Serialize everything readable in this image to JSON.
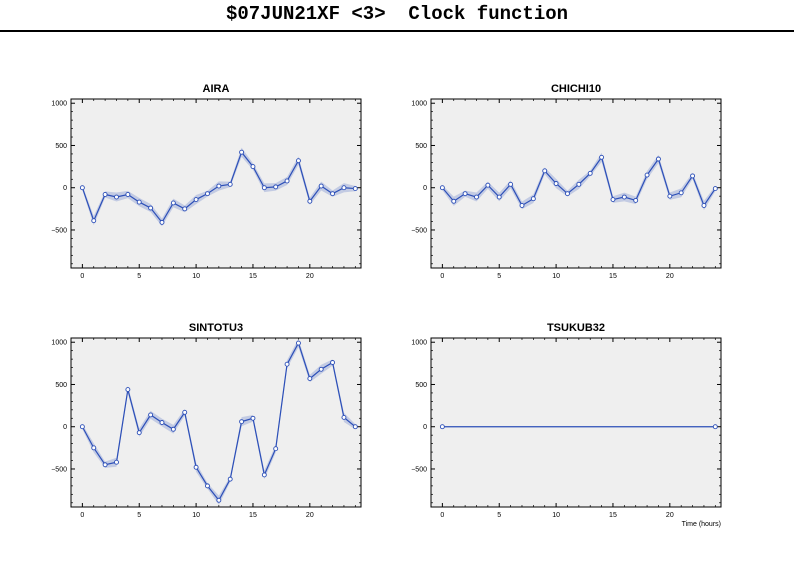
{
  "title": "$07JUN21XF <3>  Clock function",
  "colors": {
    "plot_bg": "#efefef",
    "series": "#2c4fb8",
    "band": "#b8c2e0",
    "axis": "#000000"
  },
  "chart_data": [
    {
      "type": "line",
      "title": "AIRA",
      "xlabel": "",
      "ylabel": "",
      "xlim": [
        -1,
        24.5
      ],
      "ylim": [
        -950,
        1050
      ],
      "xticks": [
        0,
        5,
        10,
        15,
        20
      ],
      "yticks": [
        -500,
        0,
        500,
        1000
      ],
      "grid": false,
      "x": [
        0,
        1,
        2,
        3,
        4,
        5,
        6,
        7,
        8,
        9,
        10,
        11,
        12,
        13,
        14,
        15,
        16,
        17,
        18,
        19,
        20,
        21,
        22,
        23,
        24
      ],
      "series": [
        {
          "values": [
            0,
            -390,
            -80,
            -110,
            -80,
            -170,
            -240,
            -410,
            -180,
            -250,
            -140,
            -70,
            20,
            40,
            420,
            250,
            0,
            10,
            80,
            320,
            -160,
            20,
            -70,
            0,
            -10
          ]
        }
      ]
    },
    {
      "type": "line",
      "title": "CHICHI10",
      "xlabel": "",
      "ylabel": "",
      "xlim": [
        -1,
        24.5
      ],
      "ylim": [
        -950,
        1050
      ],
      "xticks": [
        0,
        5,
        10,
        15,
        20
      ],
      "yticks": [
        -500,
        0,
        500,
        1000
      ],
      "grid": false,
      "x": [
        0,
        1,
        2,
        3,
        4,
        5,
        6,
        7,
        8,
        9,
        10,
        11,
        12,
        13,
        14,
        15,
        16,
        17,
        18,
        19,
        20,
        21,
        22,
        23,
        24
      ],
      "series": [
        {
          "values": [
            0,
            -160,
            -70,
            -110,
            30,
            -110,
            40,
            -210,
            -130,
            200,
            50,
            -70,
            40,
            170,
            360,
            -140,
            -110,
            -150,
            150,
            340,
            -100,
            -60,
            140,
            -210,
            -10
          ]
        }
      ]
    },
    {
      "type": "line",
      "title": "SINTOTU3",
      "xlabel": "",
      "ylabel": "",
      "xlim": [
        -1,
        24.5
      ],
      "ylim": [
        -950,
        1050
      ],
      "xticks": [
        0,
        5,
        10,
        15,
        20
      ],
      "yticks": [
        -500,
        0,
        500,
        1000
      ],
      "grid": false,
      "x": [
        0,
        1,
        2,
        3,
        4,
        5,
        6,
        7,
        8,
        9,
        10,
        11,
        12,
        13,
        14,
        15,
        16,
        17,
        18,
        19,
        20,
        21,
        22,
        23,
        24
      ],
      "series": [
        {
          "values": [
            0,
            -250,
            -450,
            -420,
            440,
            -70,
            140,
            50,
            -30,
            170,
            -480,
            -700,
            -870,
            -620,
            60,
            100,
            -570,
            -260,
            740,
            990,
            570,
            680,
            760,
            110,
            0
          ]
        }
      ]
    },
    {
      "type": "line",
      "title": "TSUKUB32",
      "xlabel": "Time (hours)",
      "ylabel": "",
      "xlim": [
        -1,
        24.5
      ],
      "ylim": [
        -950,
        1050
      ],
      "xticks": [
        0,
        5,
        10,
        15,
        20
      ],
      "yticks": [
        -500,
        0,
        500,
        1000
      ],
      "grid": false,
      "x": [
        0,
        24
      ],
      "series": [
        {
          "values": [
            0,
            0
          ]
        }
      ]
    }
  ]
}
